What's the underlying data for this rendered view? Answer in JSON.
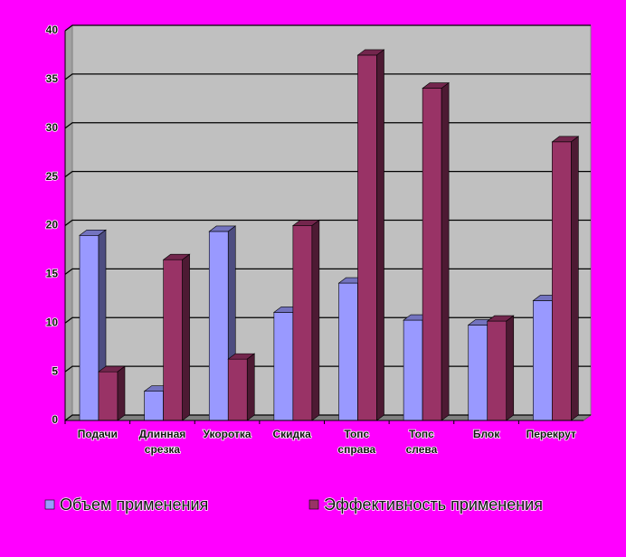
{
  "chart_data": {
    "type": "bar3d",
    "categories": [
      "Подачи",
      "Длинная срезка",
      "Укоротка",
      "Скидка",
      "Топс справа",
      "Топс слева",
      "Блок",
      "Перекрут"
    ],
    "series": [
      {
        "name": "Объем применения",
        "color": "#9999ff",
        "values": [
          19.0,
          3.0,
          19.4,
          11.1,
          14.1,
          10.3,
          9.8,
          12.3
        ]
      },
      {
        "name": "Эффективность применения",
        "color": "#993366",
        "values": [
          5.0,
          16.5,
          6.3,
          20.0,
          37.5,
          34.1,
          10.2,
          28.6
        ]
      }
    ],
    "ylim": [
      0,
      40
    ],
    "yticks": [
      0,
      5,
      10,
      15,
      20,
      25,
      30,
      35,
      40
    ],
    "grid": true
  }
}
